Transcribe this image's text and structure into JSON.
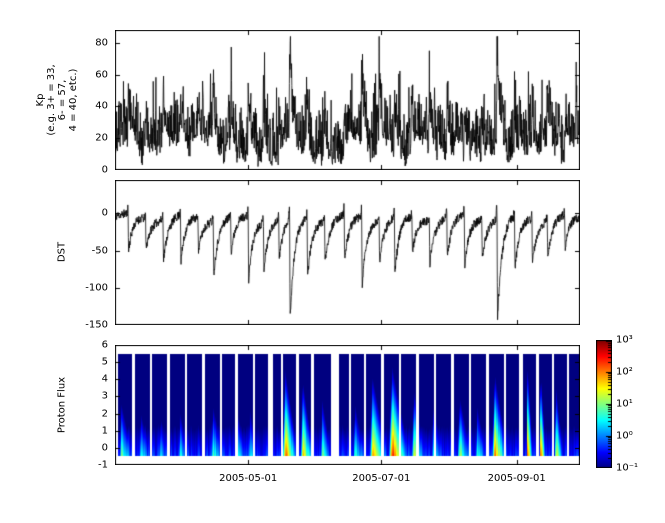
{
  "figure": {
    "background": "#ffffff",
    "frame_color": "#000000",
    "line_color": "#000000"
  },
  "x_axis": {
    "start_day": 0,
    "end_day": 213,
    "ticks": [
      {
        "day": 61,
        "label": "2005-05-01"
      },
      {
        "day": 122,
        "label": "2005-07-01"
      },
      {
        "day": 184,
        "label": "2005-09-01"
      }
    ]
  },
  "colorbar": {
    "log_range": [
      -1,
      3
    ],
    "ticks": [
      "10³",
      "10²",
      "10¹",
      "10⁰",
      "10⁻¹"
    ],
    "colormap": "jet"
  },
  "chart_data": [
    {
      "type": "line",
      "title": "Kp index time series",
      "ylabel_lines": [
        "Kp",
        "(e.g. 3+ = 33,",
        "6- = 57,",
        "4 = 40, etc.)"
      ],
      "ylim": [
        0,
        88
      ],
      "yticks": [
        0,
        20,
        40,
        60,
        80
      ],
      "line_color": "#000000",
      "seed": 7,
      "samples_per_day": 8,
      "quiet_level": 20,
      "max_value": 84
    },
    {
      "type": "line",
      "title": "DST index time series",
      "ylabel": "DST",
      "ylim": [
        -150,
        45
      ],
      "yticks": [
        0,
        -50,
        -100,
        -150
      ],
      "line_color": "#000000",
      "seed": 11,
      "samples_per_day": 8,
      "storms": [
        {
          "day": 6,
          "mag": 55
        },
        {
          "day": 14,
          "mag": 45
        },
        {
          "day": 22,
          "mag": 60
        },
        {
          "day": 30,
          "mag": 70
        },
        {
          "day": 38,
          "mag": 50
        },
        {
          "day": 45,
          "mag": 80
        },
        {
          "day": 53,
          "mag": 55
        },
        {
          "day": 61,
          "mag": 95
        },
        {
          "day": 68,
          "mag": 70
        },
        {
          "day": 75,
          "mag": 60
        },
        {
          "day": 80,
          "mag": 150
        },
        {
          "day": 88,
          "mag": 85
        },
        {
          "day": 96,
          "mag": 60
        },
        {
          "day": 105,
          "mag": 70
        },
        {
          "day": 113,
          "mag": 100
        },
        {
          "day": 121,
          "mag": 60
        },
        {
          "day": 128,
          "mag": 85
        },
        {
          "day": 136,
          "mag": 55
        },
        {
          "day": 144,
          "mag": 65
        },
        {
          "day": 152,
          "mag": 60
        },
        {
          "day": 160,
          "mag": 75
        },
        {
          "day": 168,
          "mag": 55
        },
        {
          "day": 175,
          "mag": 150
        },
        {
          "day": 183,
          "mag": 80
        },
        {
          "day": 191,
          "mag": 65
        },
        {
          "day": 198,
          "mag": 55
        },
        {
          "day": 206,
          "mag": 50
        }
      ]
    },
    {
      "type": "heatmap",
      "title": "Proton Flux spectrogram",
      "ylabel": "Proton Flux",
      "ylim": [
        -1,
        6
      ],
      "yticks": [
        -1,
        0,
        1,
        2,
        3,
        4,
        5,
        6
      ],
      "strip_extent": [
        -0.5,
        5.5
      ],
      "log_flux_range": [
        -1,
        3
      ],
      "seed": 3,
      "quiet_bottom_log_flux": -0.35,
      "quiet_top_height": 1.2,
      "events": [
        {
          "day": 3,
          "w": 5,
          "a": 1.3,
          "h": 2.6
        },
        {
          "day": 12,
          "w": 4,
          "a": 0.9,
          "h": 2.0
        },
        {
          "day": 21,
          "w": 3,
          "a": 0.7,
          "h": 1.8
        },
        {
          "day": 30,
          "w": 4,
          "a": 0.8,
          "h": 2.0
        },
        {
          "day": 45,
          "w": 5,
          "a": 1.1,
          "h": 2.4
        },
        {
          "day": 56,
          "w": 4,
          "a": 0.9,
          "h": 2.2
        },
        {
          "day": 62,
          "w": 3,
          "a": 1.0,
          "h": 2.2
        },
        {
          "day": 78,
          "w": 6,
          "a": 2.6,
          "h": 4.6
        },
        {
          "day": 86,
          "w": 5,
          "a": 2.2,
          "h": 4.0
        },
        {
          "day": 95,
          "w": 4,
          "a": 1.4,
          "h": 2.8
        },
        {
          "day": 110,
          "w": 4,
          "a": 1.2,
          "h": 2.6
        },
        {
          "day": 118,
          "w": 7,
          "a": 2.2,
          "h": 4.2
        },
        {
          "day": 127,
          "w": 8,
          "a": 2.8,
          "h": 4.8
        },
        {
          "day": 137,
          "w": 5,
          "a": 1.8,
          "h": 3.4
        },
        {
          "day": 146,
          "w": 4,
          "a": 1.2,
          "h": 2.6
        },
        {
          "day": 158,
          "w": 5,
          "a": 1.5,
          "h": 3.0
        },
        {
          "day": 166,
          "w": 4,
          "a": 1.0,
          "h": 2.4
        },
        {
          "day": 174,
          "w": 6,
          "a": 2.4,
          "h": 4.4
        },
        {
          "day": 189,
          "w": 2.5,
          "a": 2.9,
          "h": 5.0
        },
        {
          "day": 195,
          "w": 2.5,
          "a": 2.7,
          "h": 4.6
        },
        {
          "day": 202,
          "w": 3,
          "a": 2.0,
          "h": 3.8
        }
      ],
      "gaps": [
        {
          "day": 0.5,
          "w": 1.0
        },
        {
          "day": 8,
          "w": 1.2
        },
        {
          "day": 16,
          "w": 1.0
        },
        {
          "day": 24,
          "w": 1.2
        },
        {
          "day": 32,
          "w": 1.0
        },
        {
          "day": 40,
          "w": 1.2
        },
        {
          "day": 48,
          "w": 1.0
        },
        {
          "day": 55,
          "w": 1.3
        },
        {
          "day": 63,
          "w": 1.0
        },
        {
          "day": 70,
          "w": 2.2
        },
        {
          "day": 76,
          "w": 1.0
        },
        {
          "day": 83,
          "w": 1.2
        },
        {
          "day": 90,
          "w": 1.0
        },
        {
          "day": 99,
          "w": 3.5
        },
        {
          "day": 107,
          "w": 1.2
        },
        {
          "day": 114,
          "w": 1.0
        },
        {
          "day": 122,
          "w": 1.3
        },
        {
          "day": 130,
          "w": 1.0
        },
        {
          "day": 138,
          "w": 1.4
        },
        {
          "day": 146,
          "w": 1.0
        },
        {
          "day": 154,
          "w": 1.2
        },
        {
          "day": 162,
          "w": 1.0
        },
        {
          "day": 170,
          "w": 1.4
        },
        {
          "day": 178,
          "w": 1.0
        },
        {
          "day": 185,
          "w": 2.0
        },
        {
          "day": 193,
          "w": 1.0
        },
        {
          "day": 200,
          "w": 1.2
        },
        {
          "day": 207,
          "w": 1.0
        }
      ]
    }
  ]
}
